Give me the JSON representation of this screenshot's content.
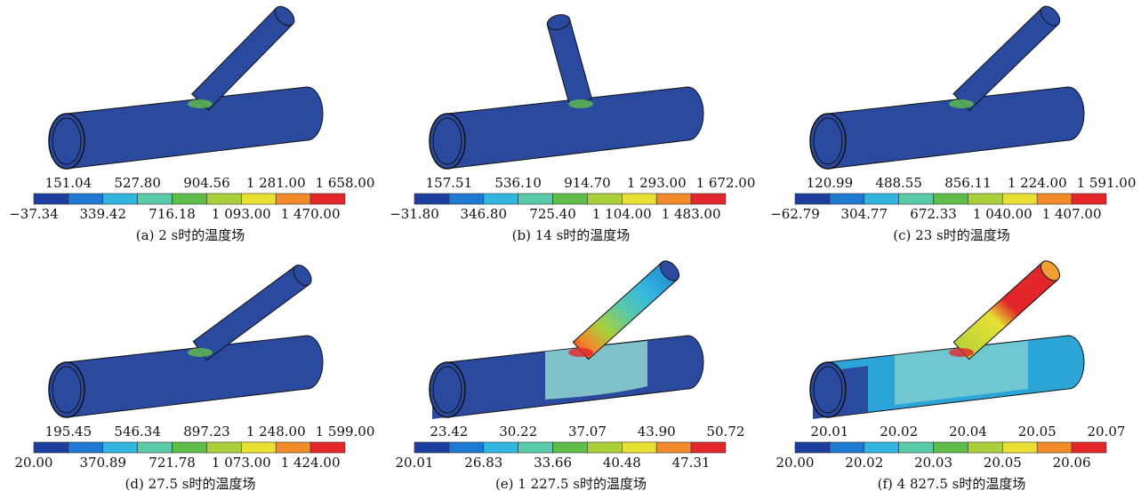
{
  "panels": [
    {
      "caption": "(a)   2 s时的温度场",
      "legend_top": [
        "151.04",
        "527.80",
        "904.56",
        "1 281.00",
        "1 658.00"
      ],
      "legend_bottom": [
        "−37.34",
        "339.42",
        "716.18",
        "1 093.00",
        "1 470.00"
      ]
    },
    {
      "caption": "(b)   14 s时的温度场",
      "legend_top": [
        "157.51",
        "536.10",
        "914.70",
        "1 293.00",
        "1 672.00"
      ],
      "legend_bottom": [
        "−31.80",
        "346.80",
        "725.40",
        "1 104.00",
        "1 483.00"
      ]
    },
    {
      "caption": "(c)   23 s时的温度场",
      "legend_top": [
        "120.99",
        "488.55",
        "856.11",
        "1 224.00",
        "1 591.00"
      ],
      "legend_bottom": [
        "−62.79",
        "304.77",
        "672.33",
        "1 040.00",
        "1 407.00"
      ]
    },
    {
      "caption": "(d)   27.5 s时的温度场",
      "legend_top": [
        "195.45",
        "546.34",
        "897.23",
        "1 248.00",
        "1 599.00"
      ],
      "legend_bottom": [
        "20.00",
        "370.89",
        "721.78",
        "1 073.00",
        "1 424.00"
      ]
    },
    {
      "caption": "(e)   1 227.5 s时的温度场",
      "legend_top": [
        "23.42",
        "30.22",
        "37.07",
        "43.90",
        "50.72"
      ],
      "legend_bottom": [
        "20.01",
        "26.83",
        "33.66",
        "40.48",
        "47.31"
      ]
    },
    {
      "caption": "(f)   4 827.5 s时的温度场",
      "legend_top": [
        "20.01",
        "20.02",
        "20.04",
        "20.05",
        "20.07"
      ],
      "legend_bottom": [
        "20.00",
        "20.02",
        "20.03",
        "20.05",
        "20.06"
      ]
    }
  ]
}
